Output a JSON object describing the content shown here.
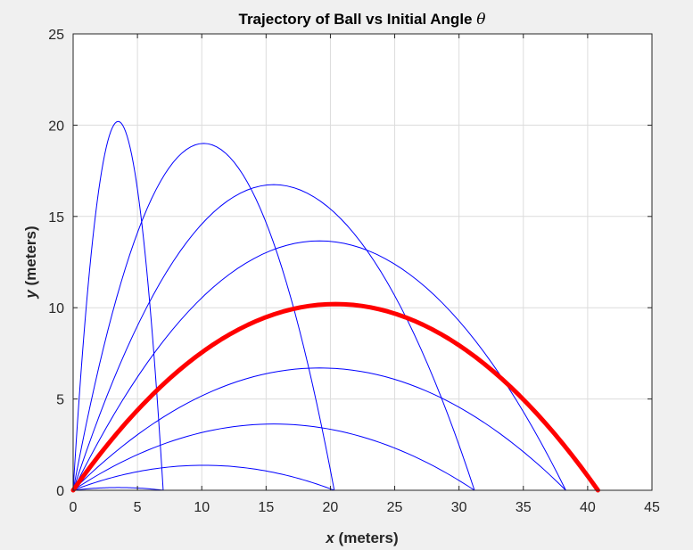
{
  "chart_data": {
    "type": "line",
    "title": "Trajectory of Ball vs Initial Angle θ",
    "title_text": "Trajectory of Ball vs Initial Angle ",
    "title_symbol": "θ",
    "xlabel_var": "x",
    "xlabel_unit": " (meters)",
    "ylabel_var": "y",
    "ylabel_unit": " (meters)",
    "xlim": [
      0,
      45
    ],
    "ylim": [
      0,
      25
    ],
    "xticks": [
      0,
      5,
      10,
      15,
      20,
      25,
      30,
      35,
      40,
      45
    ],
    "yticks": [
      0,
      5,
      10,
      15,
      20,
      25
    ],
    "grid": true,
    "colors": {
      "trajectory": "#0000ff",
      "highlight": "#ff0000"
    },
    "series": [
      {
        "range": 7.0,
        "apex_x": 3.5,
        "apex_y": 0.15,
        "highlight": false
      },
      {
        "range": 20.3,
        "apex_x": 10.2,
        "apex_y": 1.37,
        "highlight": false
      },
      {
        "range": 31.2,
        "apex_x": 15.6,
        "apex_y": 3.63,
        "highlight": false
      },
      {
        "range": 38.3,
        "apex_x": 19.2,
        "apex_y": 6.7,
        "highlight": false
      },
      {
        "range": 40.8,
        "apex_x": 20.4,
        "apex_y": 10.2,
        "highlight": true
      },
      {
        "range": 38.3,
        "apex_x": 19.2,
        "apex_y": 13.66,
        "highlight": false
      },
      {
        "range": 31.2,
        "apex_x": 15.6,
        "apex_y": 16.74,
        "highlight": false
      },
      {
        "range": 20.3,
        "apex_x": 10.2,
        "apex_y": 19.0,
        "highlight": false
      },
      {
        "range": 7.0,
        "apex_x": 3.5,
        "apex_y": 20.2,
        "highlight": false
      }
    ]
  }
}
